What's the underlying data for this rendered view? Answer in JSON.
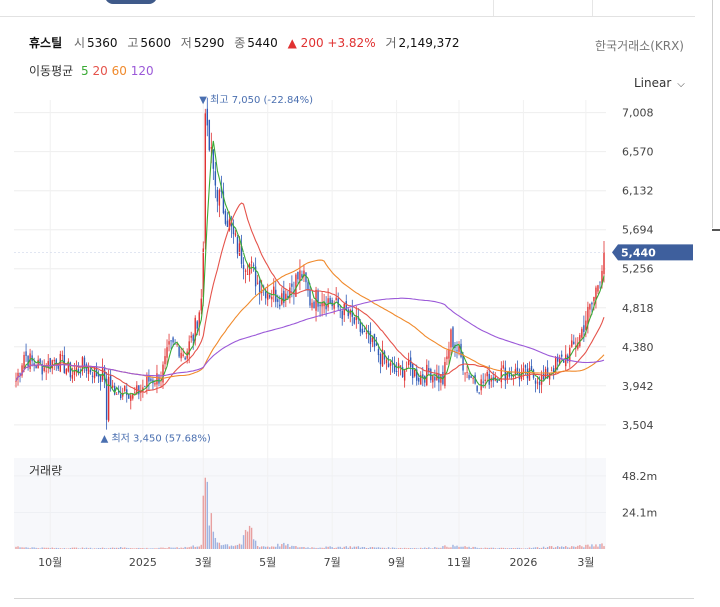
{
  "stock": {
    "name": "휴스틸",
    "open_label": "시",
    "open": "5360",
    "high_label": "고",
    "high": "5600",
    "low_label": "저",
    "low": "5290",
    "close_label": "종",
    "close": "5440",
    "change": "▲ 200",
    "change_pct": "+3.82%",
    "volume_label": "거",
    "volume": "2,149,372",
    "exchange": "한국거래소(KRX)"
  },
  "moving_average": {
    "label": "이동평균",
    "periods": [
      "5",
      "20",
      "60",
      "120"
    ],
    "colors": [
      "#3aaa35",
      "#e5534b",
      "#f08a2c",
      "#9b59d8"
    ]
  },
  "scale": {
    "label": "Linear",
    "icon": "chevron-down-icon"
  },
  "chart_data": {
    "type": "candlestick",
    "price_axis": {
      "ticks": [
        "7,008",
        "6,570",
        "6,132",
        "5,694",
        "5,256",
        "4,818",
        "4,380",
        "3,942",
        "3,504"
      ],
      "range": [
        3300,
        7150
      ]
    },
    "current_price_label": "5,440",
    "high_annotation": "▼ 최고 7,050 (-22.84%)",
    "low_annotation": "▲ 최저 3,450 (57.68%)",
    "volume_panel": {
      "label": "거래량",
      "ticks": [
        "48.2m",
        "24.1m"
      ],
      "range": [
        0,
        60
      ]
    },
    "x_labels": [
      "10월",
      "2025",
      "3월",
      "5월",
      "7월",
      "9월",
      "11월",
      "2026",
      "3월"
    ],
    "up_color": "#e03131",
    "down_color": "#2f5bb7",
    "close_path": [
      [
        0,
        4000
      ],
      [
        4,
        4300
      ],
      [
        8,
        4200
      ],
      [
        14,
        4150
      ],
      [
        20,
        4250
      ],
      [
        28,
        4080
      ],
      [
        34,
        4180
      ],
      [
        40,
        4080
      ],
      [
        46,
        4050
      ],
      [
        50,
        3800
      ],
      [
        54,
        3950
      ],
      [
        58,
        3820
      ],
      [
        62,
        3900
      ],
      [
        66,
        4000
      ],
      [
        72,
        4050
      ],
      [
        76,
        4350
      ],
      [
        80,
        4400
      ],
      [
        84,
        4300
      ],
      [
        88,
        4500
      ],
      [
        92,
        4900
      ],
      [
        95,
        6700
      ],
      [
        97,
        6500
      ],
      [
        99,
        6200
      ],
      [
        101,
        6050
      ],
      [
        104,
        5900
      ],
      [
        108,
        5600
      ],
      [
        112,
        5400
      ],
      [
        116,
        5300
      ],
      [
        120,
        5100
      ],
      [
        126,
        5000
      ],
      [
        132,
        4950
      ],
      [
        138,
        5100
      ],
      [
        142,
        5200
      ],
      [
        146,
        4900
      ],
      [
        152,
        4950
      ],
      [
        158,
        4850
      ],
      [
        164,
        4750
      ],
      [
        170,
        4600
      ],
      [
        176,
        4400
      ],
      [
        182,
        4250
      ],
      [
        188,
        4100
      ],
      [
        194,
        4150
      ],
      [
        200,
        4050
      ],
      [
        206,
        4100
      ],
      [
        212,
        4000
      ],
      [
        216,
        4500
      ],
      [
        220,
        4300
      ],
      [
        224,
        4100
      ],
      [
        230,
        3950
      ],
      [
        236,
        4050
      ],
      [
        242,
        4100
      ],
      [
        248,
        4080
      ],
      [
        254,
        4050
      ],
      [
        258,
        4050
      ],
      [
        262,
        4000
      ],
      [
        266,
        4150
      ],
      [
        270,
        4200
      ],
      [
        276,
        4350
      ],
      [
        280,
        4500
      ],
      [
        283,
        4700
      ],
      [
        286,
        4850
      ],
      [
        289,
        5100
      ],
      [
        292,
        5440
      ]
    ],
    "volume_path": [
      [
        0,
        1.5
      ],
      [
        10,
        0.8
      ],
      [
        20,
        0.6
      ],
      [
        30,
        0.7
      ],
      [
        40,
        0.5
      ],
      [
        50,
        1.0
      ],
      [
        60,
        0.6
      ],
      [
        70,
        0.5
      ],
      [
        78,
        1.0
      ],
      [
        86,
        1.2
      ],
      [
        92,
        3.0
      ],
      [
        94,
        47.0
      ],
      [
        96,
        22.0
      ],
      [
        98,
        10.0
      ],
      [
        100,
        5.0
      ],
      [
        104,
        3.0
      ],
      [
        108,
        2.5
      ],
      [
        112,
        3.5
      ],
      [
        116,
        14.0
      ],
      [
        120,
        2.0
      ],
      [
        126,
        1.5
      ],
      [
        132,
        3.0
      ],
      [
        138,
        1.5
      ],
      [
        146,
        1.0
      ],
      [
        156,
        1.2
      ],
      [
        166,
        1.5
      ],
      [
        176,
        1.0
      ],
      [
        186,
        0.8
      ],
      [
        196,
        0.6
      ],
      [
        206,
        0.8
      ],
      [
        216,
        2.0
      ],
      [
        226,
        1.0
      ],
      [
        236,
        0.6
      ],
      [
        246,
        0.5
      ],
      [
        256,
        0.7
      ],
      [
        266,
        1.5
      ],
      [
        276,
        1.5
      ],
      [
        284,
        2.0
      ],
      [
        292,
        3.5
      ]
    ]
  }
}
